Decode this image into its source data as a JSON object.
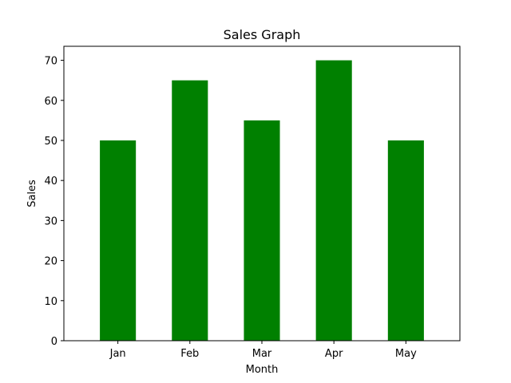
{
  "chart_data": {
    "type": "bar",
    "title": "Sales Graph",
    "xlabel": "Month",
    "ylabel": "Sales",
    "categories": [
      "Jan",
      "Feb",
      "Mar",
      "Apr",
      "May"
    ],
    "values": [
      50,
      65,
      55,
      70,
      50
    ],
    "ylim": [
      0,
      73.5
    ],
    "yticks": [
      0,
      10,
      20,
      30,
      40,
      50,
      60,
      70
    ],
    "bar_color": "#008000",
    "grid": false,
    "legend": "none"
  }
}
